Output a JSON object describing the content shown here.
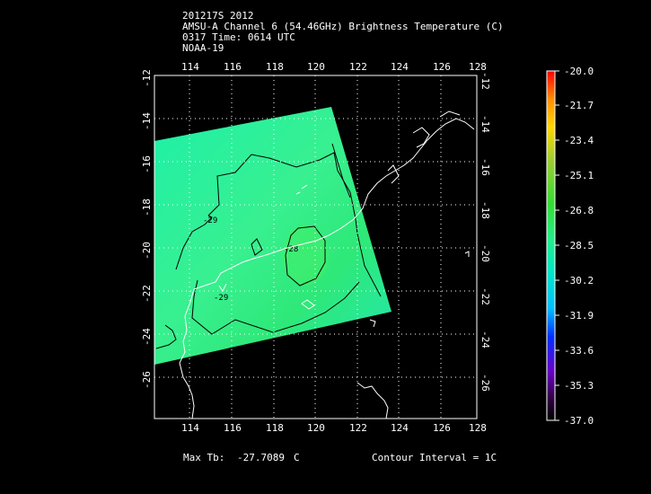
{
  "header": {
    "line1": "201217S 2012",
    "line2": "AMSU-A Channel 6 (54.46GHz) Brightness Temperature (C)",
    "line3": "0317 Time: 0614 UTC",
    "line4": "NOAA-19"
  },
  "map": {
    "lon_ticks": [
      "114",
      "116",
      "118",
      "120",
      "122",
      "124",
      "126",
      "128"
    ],
    "lat_ticks": [
      "-12",
      "-14",
      "-16",
      "-18",
      "-20",
      "-22",
      "-24",
      "-26"
    ],
    "lon_range": [
      112,
      128
    ],
    "lat_range": [
      -12,
      -27
    ],
    "contour_labels": [
      "-29",
      "-28",
      "-29"
    ]
  },
  "colorbar": {
    "labels": [
      "-20.0",
      "-21.7",
      "-23.4",
      "-25.1",
      "-26.8",
      "-28.5",
      "-30.2",
      "-31.9",
      "-33.6",
      "-35.3",
      "-37.0"
    ],
    "colors": [
      "#ff0000",
      "#ff8c00",
      "#ffd700",
      "#9acd32",
      "#33dd33",
      "#22ee88",
      "#00e5c8",
      "#00bfff",
      "#0030ff",
      "#6a00c8",
      "#300040",
      "#000000"
    ]
  },
  "footer": {
    "max_tb_label": "Max Tb:",
    "max_tb_value": "-27.7089",
    "max_tb_unit": "C",
    "contour_interval": "Contour Interval = 1C"
  }
}
